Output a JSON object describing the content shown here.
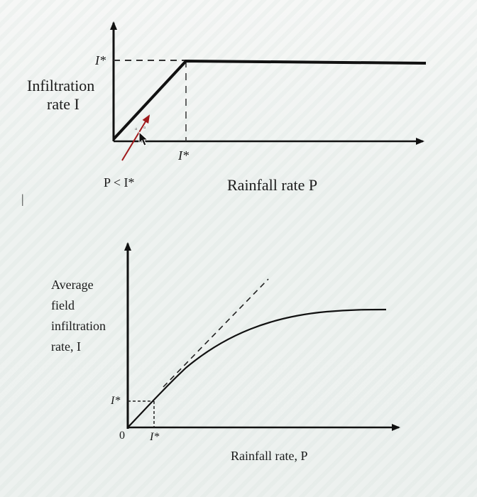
{
  "top_plot": {
    "ystar_label": "I*",
    "y_axis_label_line1": "Infiltration",
    "y_axis_label_line2": "rate I",
    "xstar_label": "I*",
    "annotation": "P < I*",
    "x_axis_label": "Rainfall rate P",
    "line_color": "#111111",
    "annotation_arrow_color": "#a0191b"
  },
  "bottom_plot": {
    "y_axis_label_line1": "Average",
    "y_axis_label_line2": "field",
    "y_axis_label_line3": "infiltration",
    "y_axis_label_line4": "rate, I",
    "ystar_label": "I*",
    "xstar_label": "I*",
    "origin_label": "0",
    "x_axis_label": "Rainfall rate, P",
    "line_color": "#111111"
  },
  "margin_mark": "|"
}
